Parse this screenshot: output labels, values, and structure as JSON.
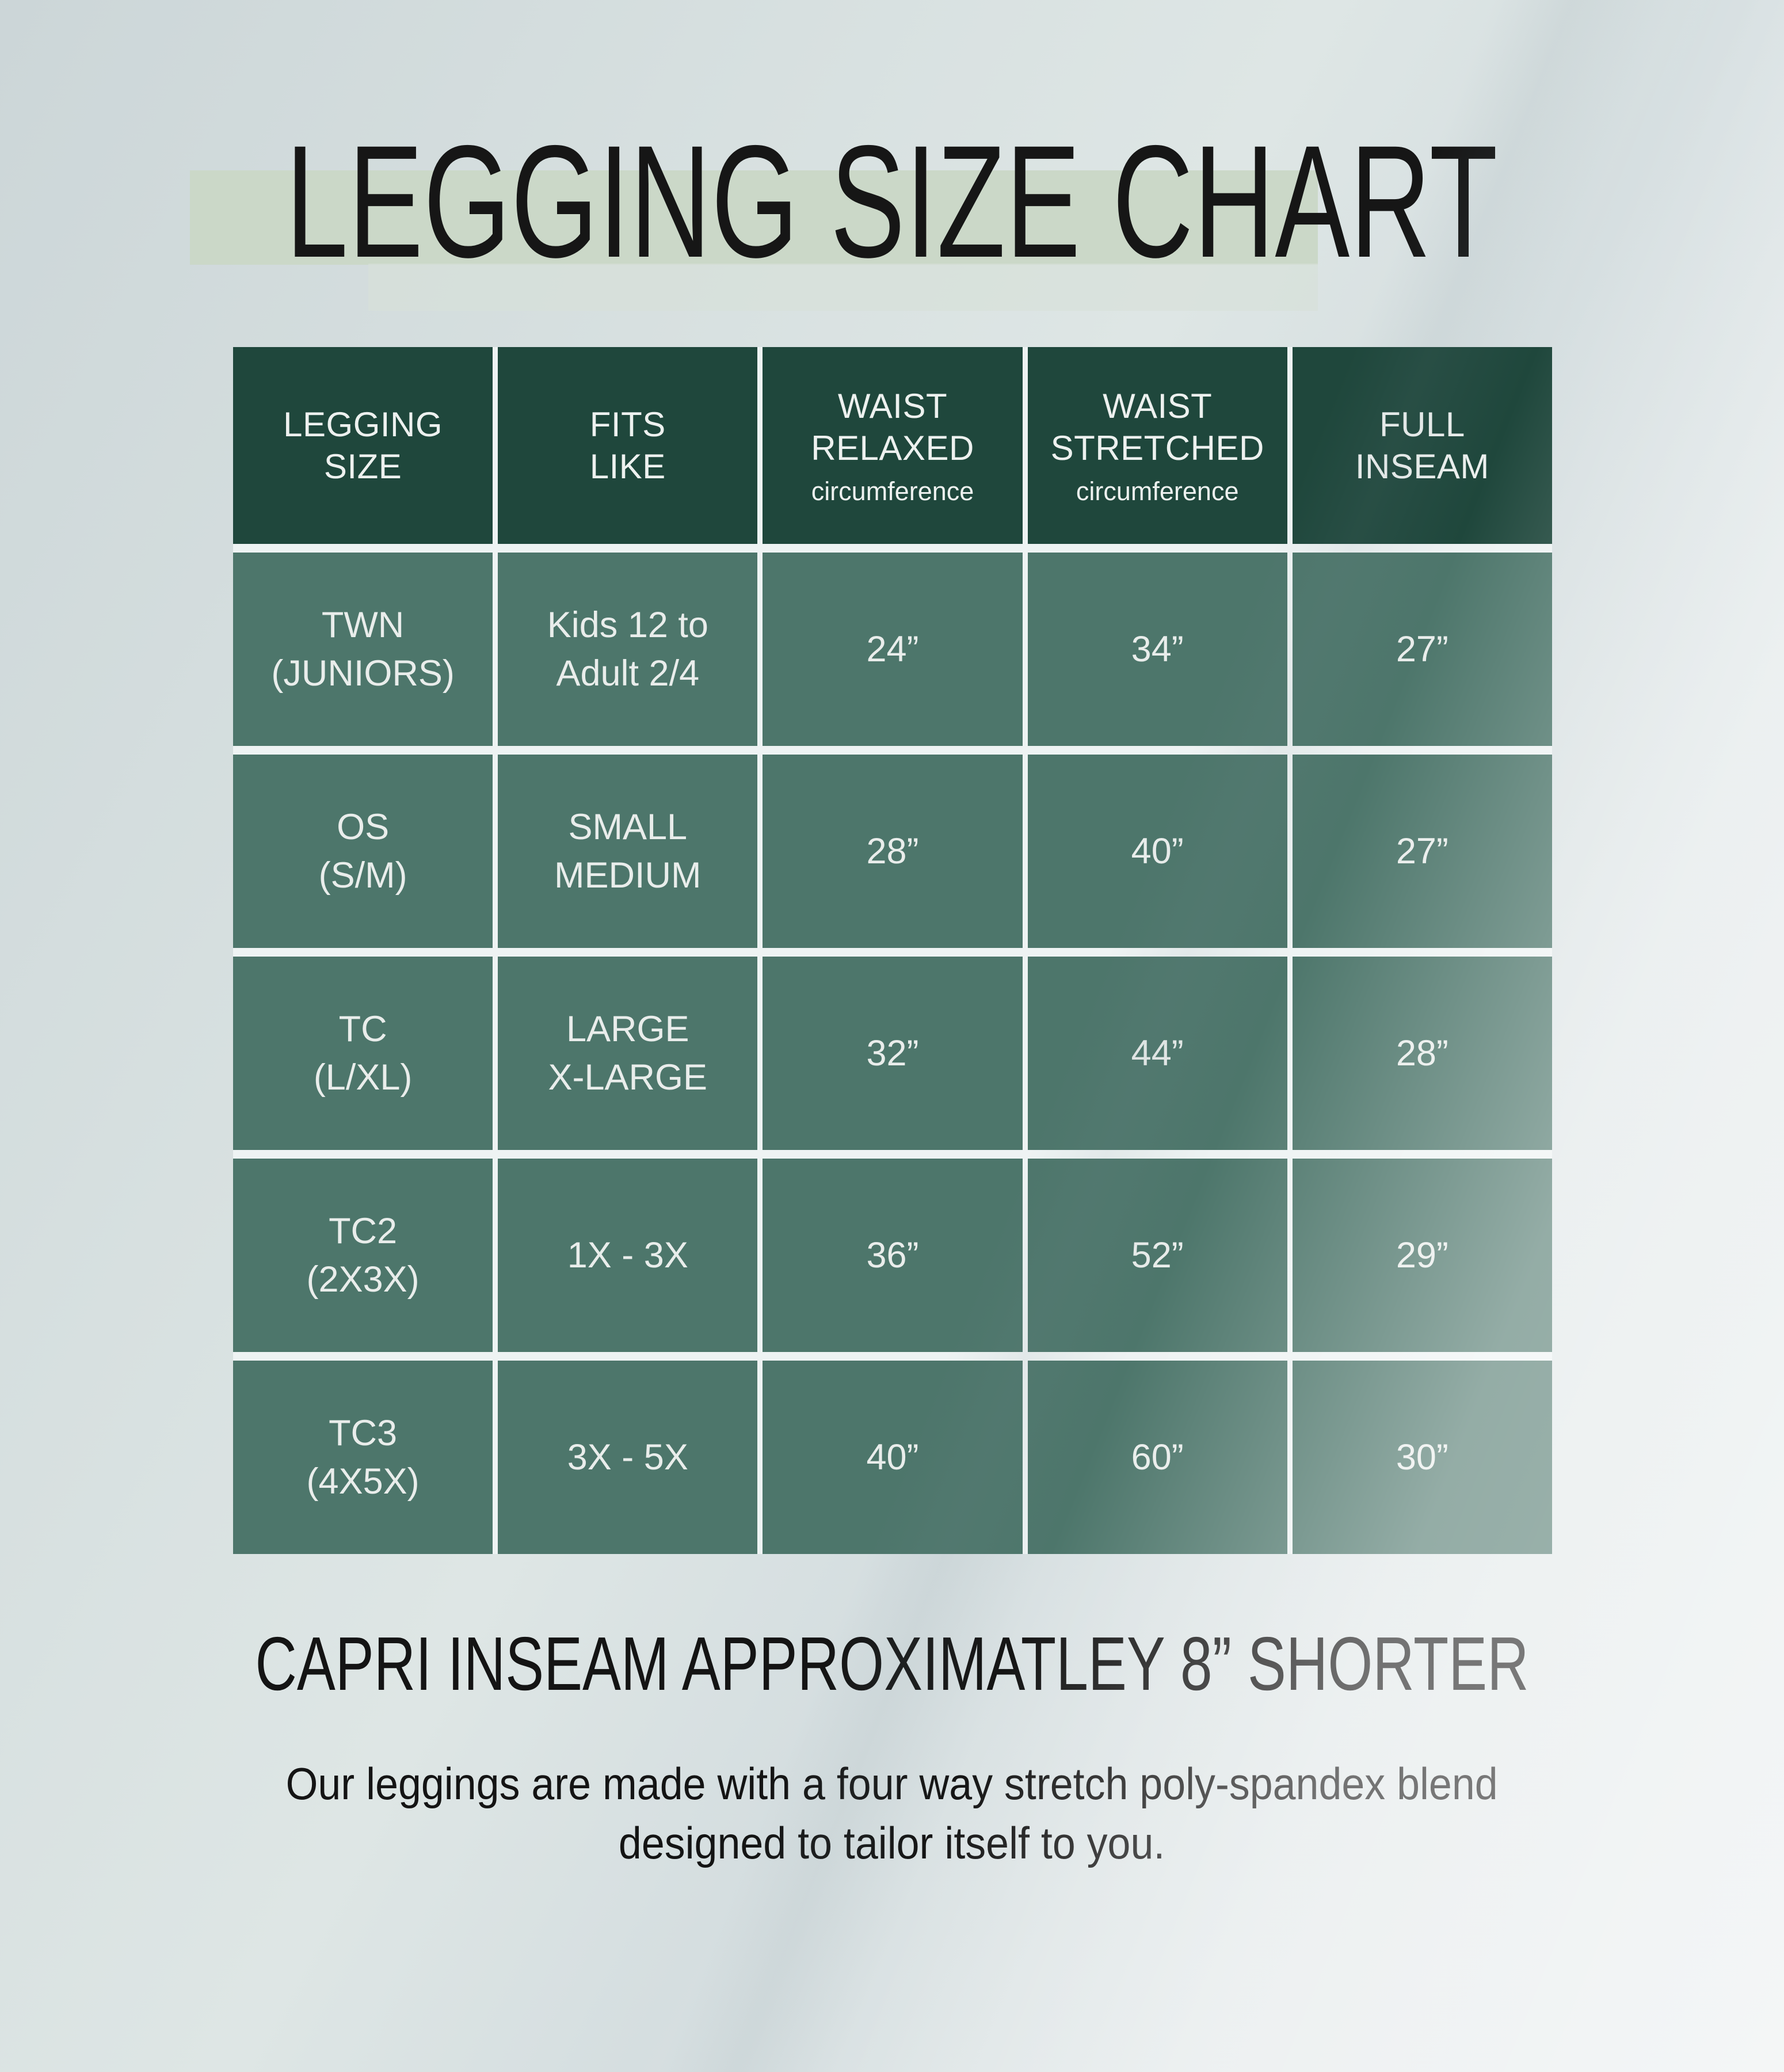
{
  "page": {
    "title": "LEGGING SIZE CHART",
    "capri_note": "CAPRI INSEAM APPROXIMATLEY 8” SHORTER",
    "description_line1": "Our leggings are made with a four way stretch poly-spandex blend",
    "description_line2": "designed to tailor itself to you."
  },
  "colors": {
    "header_green": "#1f473c",
    "cell_green": "#4d766b",
    "grid_line": "#eef3f3",
    "cell_text": "#e9edeb",
    "title_highlight_band": "#cbd8c8",
    "background_top_left": "#ccd6d8",
    "background_bottom_right": "#e9edee",
    "title_text": "#161616"
  },
  "table": {
    "headers": [
      {
        "line1": "LEGGING",
        "line2": "SIZE",
        "sub": ""
      },
      {
        "line1": "FITS",
        "line2": "LIKE",
        "sub": ""
      },
      {
        "line1": "WAIST",
        "line2": "RELAXED",
        "sub": "circumference"
      },
      {
        "line1": "WAIST",
        "line2": "STRETCHED",
        "sub": "circumference"
      },
      {
        "line1": "FULL",
        "line2": "INSEAM",
        "sub": ""
      }
    ],
    "rows": [
      {
        "size1": "TWN",
        "size2": "(JUNIORS)",
        "fits1": "Kids 12 to",
        "fits2": "Adult 2/4",
        "relaxed": "24”",
        "stretched": "34”",
        "inseam": "27”"
      },
      {
        "size1": "OS",
        "size2": "(S/M)",
        "fits1": "SMALL",
        "fits2": "MEDIUM",
        "relaxed": "28”",
        "stretched": "40”",
        "inseam": "27”"
      },
      {
        "size1": "TC",
        "size2": "(L/XL)",
        "fits1": "LARGE",
        "fits2": "X-LARGE",
        "relaxed": "32”",
        "stretched": "44”",
        "inseam": "28”"
      },
      {
        "size1": "TC2",
        "size2": "(2X3X)",
        "fits1": "1X - 3X",
        "fits2": "",
        "relaxed": "36”",
        "stretched": "52”",
        "inseam": "29”"
      },
      {
        "size1": "TC3",
        "size2": "(4X5X)",
        "fits1": "3X - 5X",
        "fits2": "",
        "relaxed": "40”",
        "stretched": "60”",
        "inseam": "30”"
      }
    ]
  },
  "chart_data": {
    "type": "table",
    "title": "LEGGING SIZE CHART",
    "columns": [
      "LEGGING SIZE",
      "FITS LIKE",
      "WAIST RELAXED circumference",
      "WAIST STRETCHED circumference",
      "FULL INSEAM"
    ],
    "rows": [
      [
        "TWN (JUNIORS)",
        "Kids 12 to Adult 2/4",
        "24”",
        "34”",
        "27”"
      ],
      [
        "OS (S/M)",
        "SMALL MEDIUM",
        "28”",
        "40”",
        "27”"
      ],
      [
        "TC (L/XL)",
        "LARGE X-LARGE",
        "32”",
        "44”",
        "28”"
      ],
      [
        "TC2 (2X3X)",
        "1X - 3X",
        "36”",
        "52”",
        "29”"
      ],
      [
        "TC3 (4X5X)",
        "3X - 5X",
        "40”",
        "60”",
        "30”"
      ]
    ],
    "notes": [
      "CAPRI INSEAM APPROXIMATLEY 8” SHORTER",
      "Our leggings are made with a four way stretch poly-spandex blend designed to tailor itself to you."
    ]
  }
}
